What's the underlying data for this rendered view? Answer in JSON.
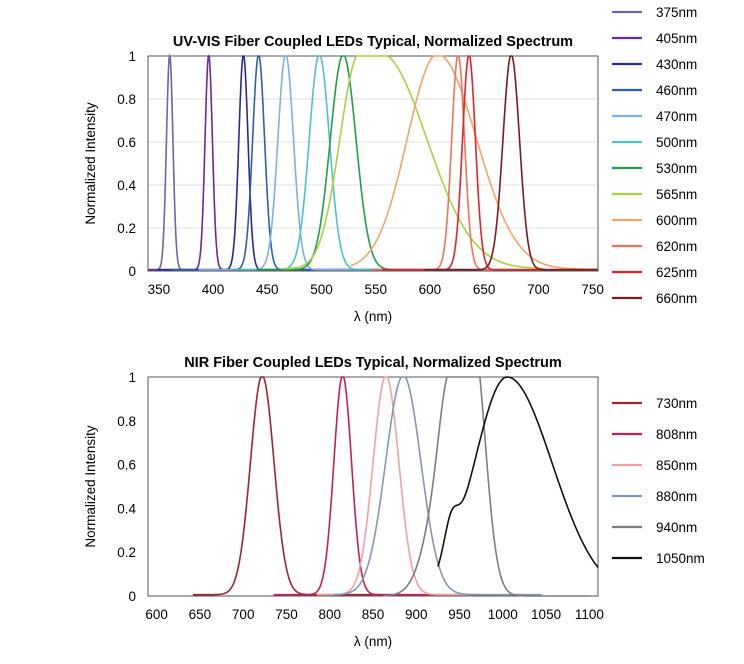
{
  "chart_data": [
    {
      "type": "line",
      "title": "UV-VIS Fiber Coupled LEDs Typical, Normalized Spectrum",
      "xlabel": "λ (nm)",
      "ylabel": "Normalized Intensity",
      "xlim": [
        340,
        755
      ],
      "ylim": [
        0,
        1
      ],
      "xticks": [
        "350",
        "400",
        "450",
        "500",
        "550",
        "600",
        "650",
        "700",
        "750"
      ],
      "yticks": [
        "0",
        "0.2",
        "0.4",
        "0.6",
        "0.8",
        "1"
      ],
      "grid": "y",
      "legend_placement": "right",
      "series": [
        {
          "name": "375nm",
          "color": "#6f63a9",
          "peak": 360,
          "fwhm": 7
        },
        {
          "name": "405nm",
          "color": "#6a2a9c",
          "peak": 396,
          "fwhm": 8
        },
        {
          "name": "430nm",
          "color": "#28289a",
          "peak": 428,
          "fwhm": 10
        },
        {
          "name": "460nm",
          "color": "#2e5fae",
          "peak": 442,
          "fwhm": 13
        },
        {
          "name": "470nm",
          "color": "#7ab2e3",
          "peak": 467,
          "fwhm": 17
        },
        {
          "name": "500nm",
          "color": "#4cc2c8",
          "peak": 498,
          "fwhm": 22
        },
        {
          "name": "530nm",
          "color": "#1fa048",
          "peak": 520,
          "fwhm": 28
        },
        {
          "name": "565nm",
          "color": "#aad13d",
          "peak": 545,
          "fwhm": 95
        },
        {
          "name": "600nm",
          "color": "#f3a466",
          "peak": 607,
          "fwhm": 75
        },
        {
          "name": "620nm",
          "color": "#ef7358",
          "peak": 626,
          "fwhm": 14
        },
        {
          "name": "625nm",
          "color": "#e8202a",
          "peak": 636,
          "fwhm": 14
        },
        {
          "name": "660nm",
          "color": "#7c1a1e",
          "peak": 675,
          "fwhm": 18
        }
      ]
    },
    {
      "type": "line",
      "title": "NIR Fiber Coupled LEDs Typical, Normalized Spectrum",
      "xlabel": "λ (nm)",
      "ylabel": "Normalized Intensity",
      "xlim": [
        590,
        1110
      ],
      "ylim": [
        0,
        1
      ],
      "xticks": [
        "600",
        "650",
        "700",
        "750",
        "800",
        "850",
        "900",
        "950",
        "1000",
        "1050",
        "1100"
      ],
      "yticks": [
        "0",
        "0.2",
        "0.4",
        "0.6",
        "0.8",
        "1"
      ],
      "grid": "none",
      "legend_placement": "right",
      "series": [
        {
          "name": "730nm",
          "color": "#a3232c",
          "peak": 722,
          "fwhm": 32
        },
        {
          "name": "808nm",
          "color": "#cc1c58",
          "peak": 815,
          "fwhm": 24
        },
        {
          "name": "850nm",
          "color": "#f3a0a3",
          "peak": 865,
          "fwhm": 35
        },
        {
          "name": "880nm",
          "color": "#8595b6",
          "peak": 885,
          "fwhm": 48
        },
        {
          "name": "940nm",
          "color": "#7d7d7d",
          "peak": 942,
          "fwhm": 55
        },
        {
          "name": "1050nm",
          "color": "#111111",
          "peak": 1005,
          "fwhm": 95
        }
      ]
    }
  ]
}
